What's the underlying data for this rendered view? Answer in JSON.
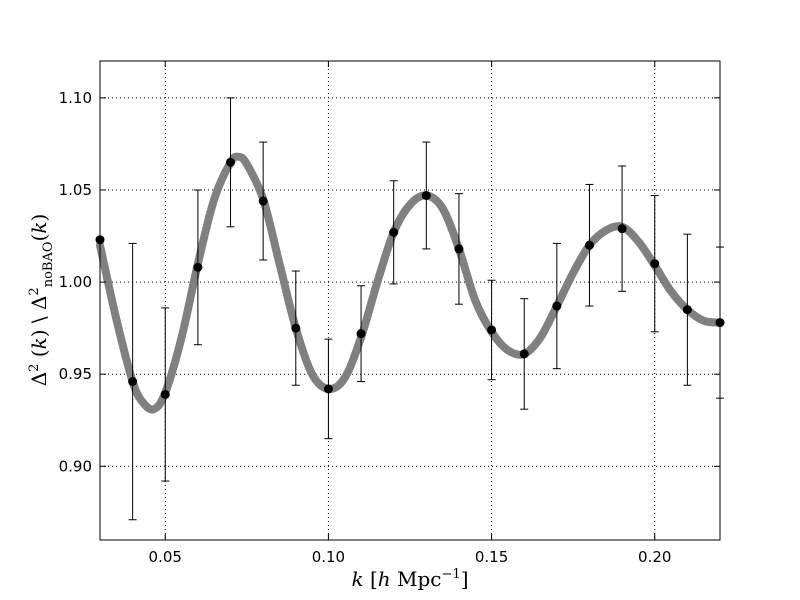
{
  "chart_data": {
    "type": "scatter",
    "xlabel": "k [h Mpc^-1]",
    "ylabel": "Δ^2 (k) \\ Δ^2_noBAO (k)",
    "xlim": [
      0.03,
      0.22
    ],
    "ylim": [
      0.86,
      1.12
    ],
    "grid": true,
    "x_ticks": [
      0.05,
      0.1,
      0.15,
      0.2
    ],
    "x_tick_labels": [
      "0.05",
      "0.10",
      "0.15",
      "0.20"
    ],
    "y_ticks": [
      0.9,
      0.95,
      1.0,
      1.05,
      1.1
    ],
    "y_tick_labels": [
      "0.90",
      "0.95",
      "1.00",
      "1.05",
      "1.10"
    ],
    "series": [
      {
        "kind": "model_curve",
        "color": "#808080",
        "x": [
          0.03,
          0.035,
          0.04,
          0.043,
          0.0465,
          0.05,
          0.055,
          0.06,
          0.065,
          0.07,
          0.0725,
          0.075,
          0.08,
          0.085,
          0.09,
          0.095,
          0.1,
          0.105,
          0.11,
          0.115,
          0.12,
          0.125,
          0.13,
          0.135,
          0.14,
          0.145,
          0.15,
          0.155,
          0.16,
          0.165,
          0.17,
          0.175,
          0.18,
          0.185,
          0.19,
          0.195,
          0.2,
          0.205,
          0.21,
          0.215,
          0.22
        ],
        "y": [
          1.02,
          0.98,
          0.946,
          0.935,
          0.931,
          0.94,
          0.97,
          1.01,
          1.045,
          1.065,
          1.068,
          1.064,
          1.045,
          1.01,
          0.975,
          0.95,
          0.942,
          0.948,
          0.97,
          1.0,
          1.027,
          1.042,
          1.047,
          1.04,
          1.018,
          0.99,
          0.973,
          0.963,
          0.961,
          0.97,
          0.987,
          1.005,
          1.02,
          1.028,
          1.03,
          1.022,
          1.009,
          0.995,
          0.985,
          0.979,
          0.978
        ]
      },
      {
        "kind": "data_points",
        "color": "#000000",
        "x": [
          0.03,
          0.04,
          0.05,
          0.06,
          0.07,
          0.08,
          0.09,
          0.1,
          0.11,
          0.12,
          0.13,
          0.14,
          0.15,
          0.16,
          0.17,
          0.18,
          0.19,
          0.2,
          0.21,
          0.22
        ],
        "y": [
          1.023,
          0.946,
          0.939,
          1.008,
          1.065,
          1.044,
          0.975,
          0.942,
          0.972,
          1.027,
          1.047,
          1.018,
          0.974,
          0.961,
          0.987,
          1.02,
          1.029,
          1.01,
          0.985,
          0.978
        ],
        "yerr": [
          0.0,
          0.075,
          0.047,
          0.042,
          0.035,
          0.032,
          0.031,
          0.027,
          0.026,
          0.028,
          0.029,
          0.03,
          0.027,
          0.03,
          0.034,
          0.033,
          0.034,
          0.037,
          0.041,
          0.041
        ]
      }
    ]
  }
}
